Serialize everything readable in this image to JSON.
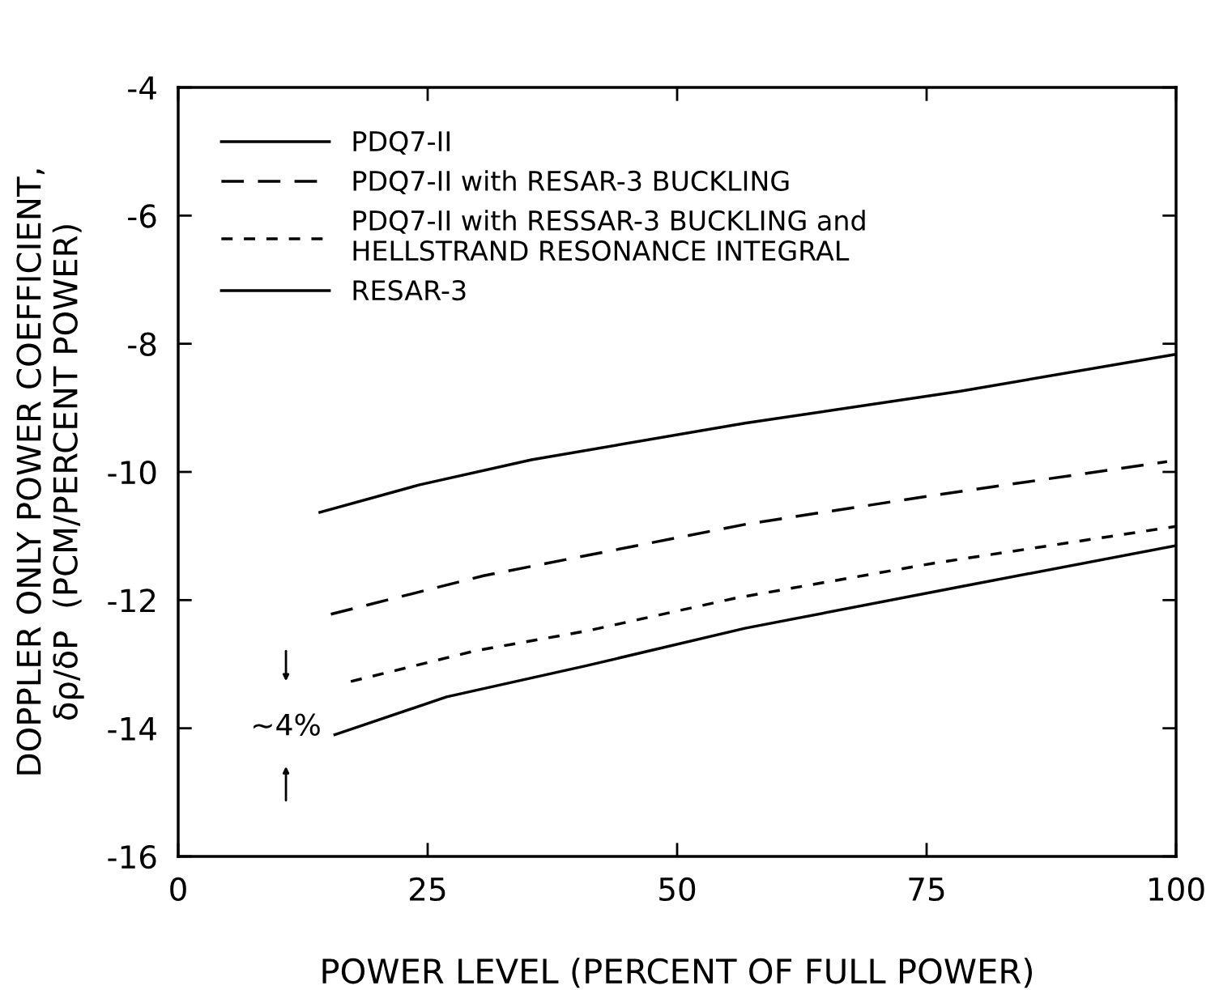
{
  "chart_data": {
    "type": "line",
    "xlabel": "POWER LEVEL (PERCENT OF FULL POWER)",
    "ylabel": "DOPPLER ONLY POWER COEFFICIENT,\nδρ/δP  (PCM/PERCENT POWER)",
    "xlim": [
      0,
      100
    ],
    "xticks": [
      0,
      25,
      50,
      75,
      100
    ],
    "ylim": [
      -16,
      -4
    ],
    "yticks": [
      -16,
      -14,
      -12,
      -10,
      -8,
      -6,
      -4
    ],
    "grid": false,
    "legend": "top left",
    "marker": "none",
    "series": [
      {
        "name": "PDQ7-II",
        "color": "#000000",
        "line_style": "solid",
        "x": [
          14.2,
          24.2,
          35.4,
          56.8,
          78.4,
          99.8
        ],
        "values": [
          -10.63,
          -10.2,
          -9.81,
          -9.24,
          -8.74,
          -8.17
        ]
      },
      {
        "name": "PDQ7-II with RESAR-3 BUCKLING",
        "color": "#000000",
        "line_style": "dashed",
        "x": [
          15.3,
          30.6,
          57.1,
          75.5,
          99.1
        ],
        "values": [
          -12.22,
          -11.62,
          -10.81,
          -10.37,
          -9.84
        ]
      },
      {
        "name": "PDQ7-II with RESSAR-3 BUCKLING and\nHELLSTRAND RESONANCE INTEGRAL",
        "color": "#000000",
        "line_style": "dotted",
        "x": [
          17.3,
          29.8,
          41,
          55.8,
          75.5,
          100
        ],
        "values": [
          -13.27,
          -12.79,
          -12.48,
          -11.97,
          -11.43,
          -10.85
        ]
      },
      {
        "name": "RESAR-3",
        "color": "#000000",
        "line_style": "solid",
        "x": [
          15.7,
          26.9,
          41,
          56.8,
          78.4,
          100
        ],
        "values": [
          -14.1,
          -13.51,
          -13.02,
          -12.44,
          -11.79,
          -11.15
        ]
      }
    ],
    "annotations": [
      "~4%"
    ]
  }
}
